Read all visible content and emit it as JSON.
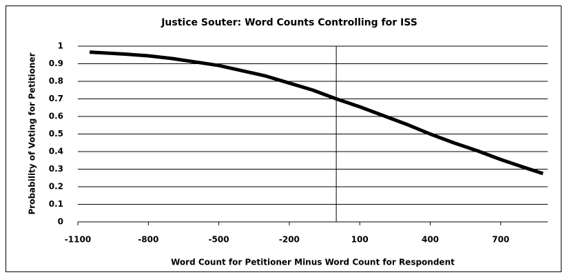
{
  "chart_data": {
    "type": "line",
    "title": "Justice Souter:  Word Counts Controlling for ISS",
    "xlabel": "Word Count for Petitioner Minus Word Count for Respondent",
    "ylabel": "Probability of Voting for Petitioner",
    "x": [
      -1050,
      -900,
      -800,
      -700,
      -600,
      -500,
      -400,
      -300,
      -200,
      -100,
      0,
      100,
      200,
      300,
      400,
      500,
      600,
      700,
      800,
      880
    ],
    "series": [
      {
        "name": "Probability",
        "color": "#000000",
        "values": [
          0.966,
          0.955,
          0.945,
          0.93,
          0.91,
          0.89,
          0.86,
          0.83,
          0.79,
          0.75,
          0.7,
          0.655,
          0.605,
          0.555,
          0.5,
          0.45,
          0.405,
          0.355,
          0.31,
          0.275
        ]
      }
    ],
    "xlim": [
      -1100,
      900
    ],
    "xticks": [
      -1100,
      -800,
      -500,
      -200,
      100,
      400,
      700
    ],
    "ylim": [
      0,
      1
    ],
    "yticks": [
      0,
      0.1,
      0.2,
      0.3,
      0.4,
      0.5,
      0.6,
      0.7,
      0.8,
      0.9,
      1
    ],
    "vline": 0,
    "grid": true
  }
}
